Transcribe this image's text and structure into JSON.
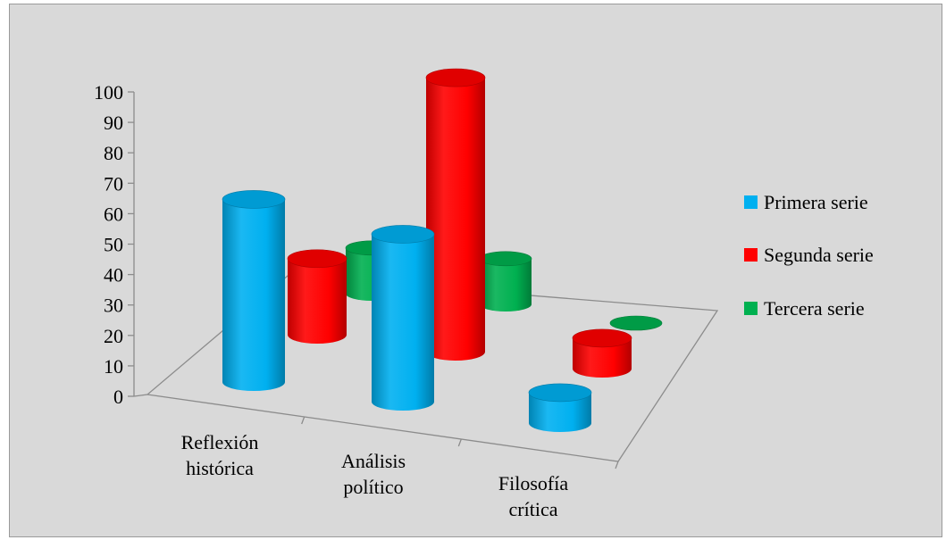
{
  "chart_data": {
    "type": "bar",
    "style": "3d-cylinder",
    "categories": [
      "Reflexión histórica",
      "Análisis político",
      "Filosofía crítica"
    ],
    "category_lines": [
      [
        "Reflexión",
        "histórica"
      ],
      [
        "Análisis",
        "político"
      ],
      [
        "Filosofía",
        "crítica"
      ]
    ],
    "series": [
      {
        "name": "Primera serie",
        "values": [
          60,
          55,
          10
        ],
        "color": "#00b0f0"
      },
      {
        "name": "Segunda serie",
        "values": [
          25,
          90,
          10
        ],
        "color": "#ff0000"
      },
      {
        "name": "Tercera serie",
        "values": [
          15,
          15,
          0
        ],
        "color": "#00b050"
      }
    ],
    "yticks": [
      0,
      10,
      20,
      30,
      40,
      50,
      60,
      70,
      80,
      90,
      100
    ],
    "ylim": [
      0,
      100
    ],
    "legend_position": "right",
    "background": "#d9d9d9",
    "grid": false
  }
}
